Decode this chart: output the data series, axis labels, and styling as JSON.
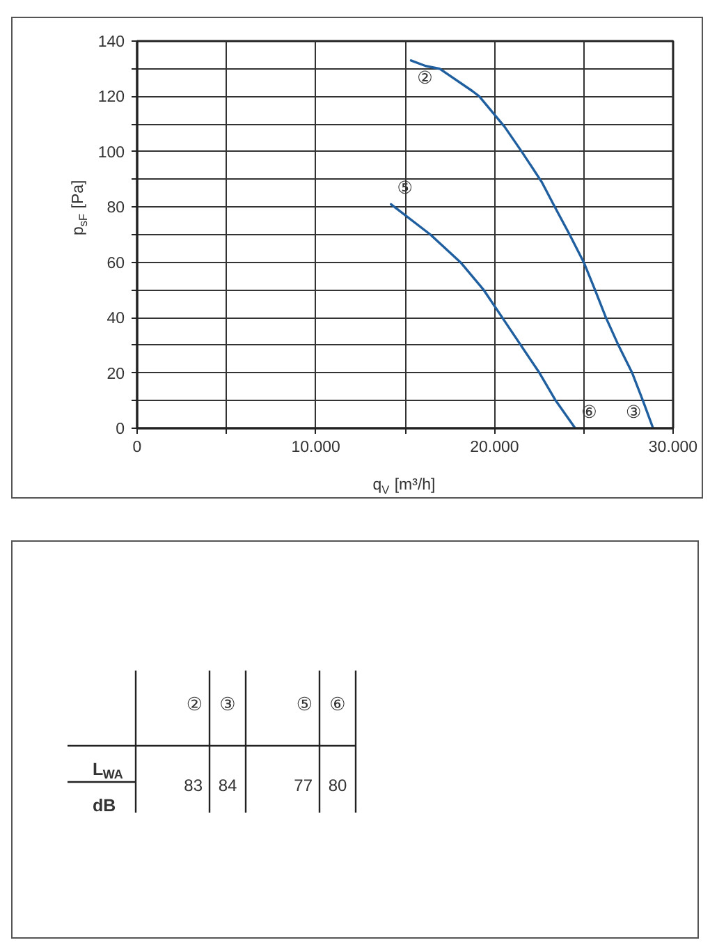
{
  "chart_data": [
    {
      "type": "line",
      "xlabel": "q$_{V}$ [m³/h]",
      "ylabel": "p$_{sF}$ [Pa]",
      "series": [
        {
          "color": "#1f5f9f",
          "x": [
            15330,
            16150,
            16930,
            18750,
            19150,
            20570,
            21530,
            22650,
            23380,
            24210,
            25000,
            25630,
            26240,
            26940,
            27710,
            28310,
            28880
          ],
          "values": [
            133,
            131,
            130,
            122,
            120,
            109,
            100,
            89,
            80,
            70,
            60,
            50,
            40,
            30,
            20,
            10,
            0
          ]
        },
        {
          "color": "#1f5f9f",
          "x": [
            14210,
            16420,
            18100,
            19400,
            20440,
            21480,
            22520,
            23430,
            24520
          ],
          "values": [
            81,
            70,
            60,
            50,
            40,
            30,
            20,
            10,
            0
          ]
        }
      ],
      "xlim": [
        0,
        30000
      ],
      "ylim": [
        0,
        140
      ],
      "xticks": [
        0,
        {
          "value": 5000,
          "label": null
        },
        {
          "value": 10000,
          "label": "10.000"
        },
        {
          "value": 15000,
          "label": null
        },
        {
          "value": 20000,
          "label": "20.000"
        },
        {
          "value": 25000,
          "label": null
        },
        {
          "value": 30000,
          "label": "30.000"
        }
      ],
      "yticks": [
        0,
        {
          "value": 10,
          "label": null
        },
        20,
        {
          "value": 30,
          "label": null
        },
        40,
        {
          "value": 50,
          "label": null
        },
        60,
        {
          "value": 70,
          "label": null
        },
        80,
        {
          "value": 90,
          "label": null
        },
        100,
        {
          "value": 110,
          "label": null
        },
        120,
        {
          "value": 130,
          "label": null
        },
        140
      ],
      "grid": true,
      "annotations": [
        {
          "text": "②",
          "x": 15330,
          "y": 133
        },
        {
          "text": "③",
          "x": 28880,
          "y": 0
        },
        {
          "text": "⑤",
          "x": 14210,
          "y": 81
        },
        {
          "text": "⑥",
          "x": 24520,
          "y": 0
        }
      ]
    },
    {
      "type": "other",
      "categories": [
        "②",
        "③",
        "⑤",
        "⑥"
      ],
      "values": [
        83,
        84,
        77,
        80
      ],
      "data_labels": true,
      "ylabel": "L$_{WA}$",
      "annotations": [
        "dB"
      ]
    }
  ]
}
